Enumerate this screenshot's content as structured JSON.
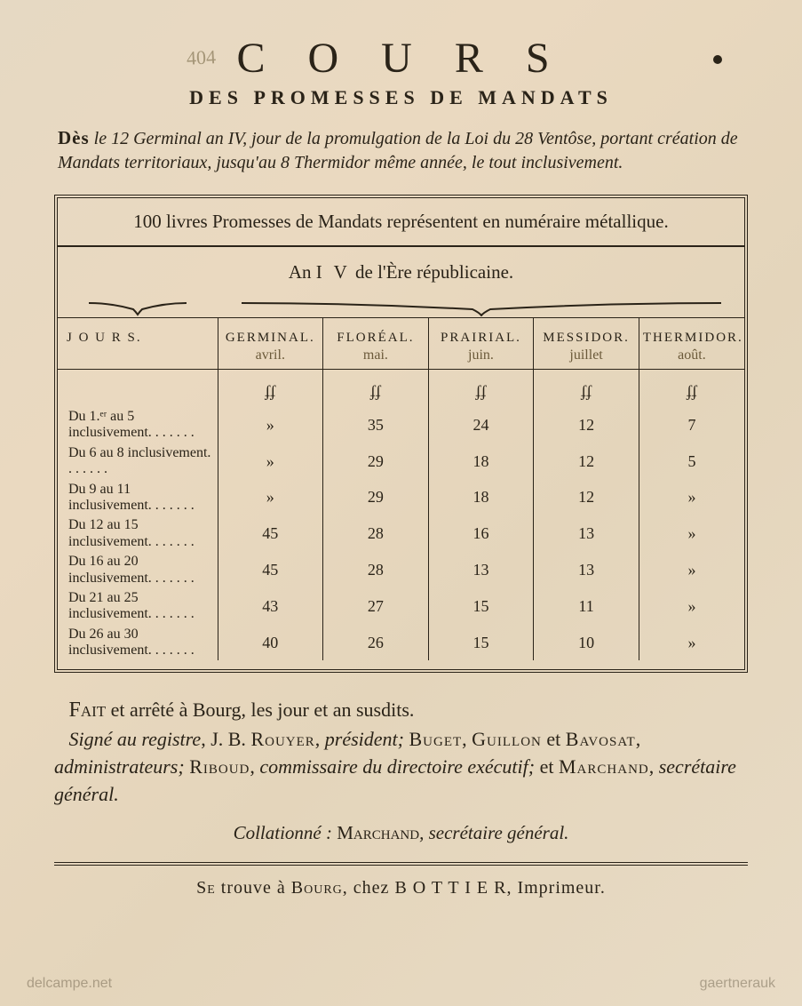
{
  "title": "C O U R S",
  "subtitle": "DES PROMESSES DE MANDATS",
  "intro_lead": "Dès",
  "intro_rest": " le 12 Germinal an IV, jour de la promulgation de la Loi du 28 Ventôse, portant création de Mandats territoriaux, jusqu'au 8 Thermidor même année, le tout inclusivement.",
  "band": "100 livres Promesses de Mandats représentent en numéraire métallique.",
  "subhead_pre": "An ",
  "subhead_iv": "I V",
  "subhead_post": " de l'Ère républicaine.",
  "col_jours": "J O U R S.",
  "months": [
    {
      "name": "GERMINAL.",
      "hand": "avril."
    },
    {
      "name": "FLORÉAL.",
      "hand": "mai."
    },
    {
      "name": "PRAIRIAL.",
      "hand": "juin."
    },
    {
      "name": "MESSIDOR.",
      "hand": "juillet"
    },
    {
      "name": "THERMIDOR.",
      "hand": "août."
    }
  ],
  "unit_row": [
    "ʄʄ",
    "ʄʄ",
    "ʄʄ",
    "ʄʄ",
    "ʄʄ"
  ],
  "rows": [
    {
      "label": "Du 1.ᵉʳ au 5 inclusivement. . . . . . .",
      "vals": [
        "»",
        "35",
        "24",
        "12",
        "7"
      ]
    },
    {
      "label": "Du 6 au 8 inclusivement. . . . . . .",
      "vals": [
        "»",
        "29",
        "18",
        "12",
        "5"
      ]
    },
    {
      "label": "Du 9 au 11 inclusivement. . . . . . .",
      "vals": [
        "»",
        "29",
        "18",
        "12",
        "»"
      ]
    },
    {
      "label": "Du 12 au 15 inclusivement. . . . . . .",
      "vals": [
        "45",
        "28",
        "16",
        "13",
        "»"
      ]
    },
    {
      "label": "Du 16 au 20 inclusivement. . . . . . .",
      "vals": [
        "45",
        "28",
        "13",
        "13",
        "»"
      ]
    },
    {
      "label": "Du 21 au 25 inclusivement. . . . . . .",
      "vals": [
        "43",
        "27",
        "15",
        "11",
        "»"
      ]
    },
    {
      "label": "Du 26 au 30 inclusivement. . . . . . .",
      "vals": [
        "40",
        "26",
        "15",
        "10",
        "»"
      ]
    }
  ],
  "closing_l1_a": "Fait",
  "closing_l1_b": " et arrêté à Bourg, les jour et an susdits.",
  "closing_l2_a": "Signé au registre",
  "closing_l2_b": ", J. B. ",
  "closing_rouyer": "Rouyer",
  "closing_l2_c": ", ",
  "closing_pres": "président; ",
  "closing_buget": "Buget",
  "closing_l2_d": ", ",
  "closing_guillon": "Guillon",
  "closing_l2_e": " et ",
  "closing_bavosat": "Bavosat",
  "closing_l2_f": ", ",
  "closing_admin": "administrateurs; ",
  "closing_riboud": "Riboud",
  "closing_l2_g": ", ",
  "closing_comm": "commissaire du directoire exécutif; ",
  "closing_l2_h": " et ",
  "closing_marchand": "Marchand",
  "closing_l2_i": ", ",
  "closing_sec": "secrétaire général.",
  "collat_a": "Collationné : ",
  "collat_b": "Marchand",
  "collat_c": ", secrétaire général.",
  "imprint_a": "Se",
  "imprint_b": " trouve à ",
  "imprint_c": "Bourg",
  "imprint_d": ", chez ",
  "imprint_e": "B O T T I E R",
  "imprint_f": ", Imprimeur.",
  "wm_left": "delcampe.net",
  "wm_right": "gaertnerauk",
  "pencil": "404",
  "colors": {
    "paper": "#e8dcc8",
    "ink": "#2a2318",
    "hand": "#6b5a3a"
  },
  "styling": {
    "title_fontsize": 48,
    "title_letterspacing": 18,
    "subtitle_fontsize": 22,
    "body_fontsize": 20,
    "table_header_fontsize": 15,
    "table_cell_fontsize": 18,
    "closing_fontsize": 22,
    "border_style": "4px double",
    "inner_rule": "1px solid"
  }
}
